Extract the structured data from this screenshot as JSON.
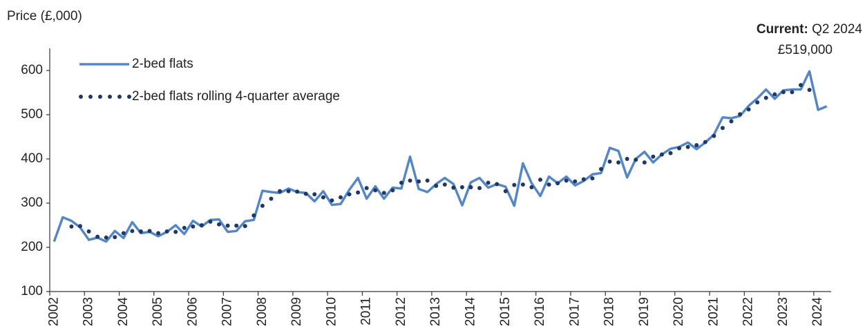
{
  "chart_data": {
    "type": "line",
    "y_label": "Price (£,000)",
    "annotation": {
      "label": "Current:",
      "period": "Q2 2024",
      "value_text": "£519,000"
    },
    "categories": [
      "2002",
      null,
      null,
      null,
      "2003",
      null,
      null,
      null,
      "2004",
      null,
      null,
      null,
      "2005",
      null,
      null,
      null,
      "2006",
      null,
      null,
      null,
      "2007",
      null,
      null,
      null,
      "2008",
      null,
      null,
      null,
      "2009",
      null,
      null,
      null,
      "2010",
      null,
      null,
      null,
      "2011",
      null,
      null,
      null,
      "2012",
      null,
      null,
      null,
      "2013",
      null,
      null,
      null,
      "2014",
      null,
      null,
      null,
      "2015",
      null,
      null,
      null,
      "2016",
      null,
      null,
      null,
      "2017",
      null,
      null,
      null,
      "2018",
      null,
      null,
      null,
      "2019",
      null,
      null,
      null,
      "2020",
      null,
      null,
      null,
      "2021",
      null,
      null,
      null,
      "2022",
      null,
      null,
      null,
      "2023",
      null,
      null,
      null,
      "2024",
      null
    ],
    "series": [
      {
        "name": "2-bed flats",
        "color": "#5587c4",
        "style": "solid",
        "values": [
          213,
          268,
          260,
          245,
          217,
          222,
          213,
          237,
          221,
          257,
          232,
          235,
          225,
          235,
          250,
          230,
          260,
          247,
          262,
          263,
          235,
          237,
          259,
          262,
          328,
          325,
          323,
          333,
          325,
          323,
          304,
          327,
          296,
          298,
          330,
          357,
          310,
          338,
          310,
          335,
          333,
          405,
          332,
          325,
          343,
          357,
          343,
          295,
          347,
          357,
          335,
          343,
          337,
          294,
          390,
          345,
          316,
          360,
          345,
          360,
          340,
          350,
          365,
          368,
          425,
          418,
          358,
          400,
          416,
          392,
          410,
          423,
          427,
          437,
          422,
          437,
          455,
          494,
          492,
          497,
          520,
          537,
          557,
          536,
          555,
          557,
          557,
          598,
          511,
          519
        ]
      },
      {
        "name": "2-bed flats rolling 4-quarter average",
        "color": "#1f3864",
        "style": "dotted",
        "values": [
          null,
          null,
          247,
          248,
          236,
          224,
          222,
          223,
          232,
          237,
          236,
          237,
          232,
          236,
          235,
          244,
          247,
          250,
          258,
          252,
          249,
          249,
          248,
          272,
          294,
          310,
          327,
          327,
          326,
          321,
          320,
          313,
          306,
          313,
          320,
          324,
          334,
          329,
          323,
          329,
          346,
          351,
          349,
          351,
          339,
          342,
          335,
          336,
          336,
          334,
          346,
          343,
          327,
          341,
          342,
          336,
          353,
          342,
          345,
          351,
          349,
          354,
          356,
          377,
          394,
          392,
          400,
          398,
          392,
          405,
          410,
          413,
          424,
          427,
          431,
          438,
          452,
          470,
          485,
          501,
          512,
          528,
          538,
          546,
          551,
          551,
          567,
          556,
          null,
          null
        ]
      }
    ],
    "ylim": [
      100,
      650
    ],
    "yticks": [
      100,
      200,
      300,
      400,
      500,
      600
    ],
    "grid": false,
    "legend": "top-left"
  }
}
